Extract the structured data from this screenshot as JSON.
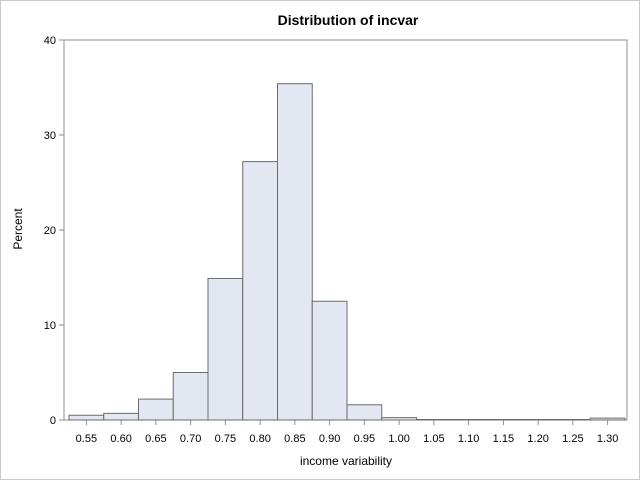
{
  "chart_data": {
    "type": "bar",
    "title": "Distribution of incvar",
    "xlabel": "income variability",
    "ylabel": "Percent",
    "x_ticks": [
      "0.55",
      "0.60",
      "0.65",
      "0.70",
      "0.75",
      "0.80",
      "0.85",
      "0.90",
      "0.95",
      "1.00",
      "1.05",
      "1.10",
      "1.15",
      "1.20",
      "1.25",
      "1.30"
    ],
    "y_ticks": [
      "0",
      "10",
      "20",
      "30",
      "40"
    ],
    "bin_width": 0.05,
    "bins": [
      {
        "center": 0.55,
        "value": 0.5
      },
      {
        "center": 0.6,
        "value": 0.7
      },
      {
        "center": 0.65,
        "value": 2.2
      },
      {
        "center": 0.7,
        "value": 5.0
      },
      {
        "center": 0.75,
        "value": 14.9
      },
      {
        "center": 0.8,
        "value": 27.2
      },
      {
        "center": 0.85,
        "value": 35.4
      },
      {
        "center": 0.9,
        "value": 12.5
      },
      {
        "center": 0.95,
        "value": 1.6
      },
      {
        "center": 1.0,
        "value": 0.25
      },
      {
        "center": 1.05,
        "value": 0.05
      },
      {
        "center": 1.1,
        "value": 0.05
      },
      {
        "center": 1.15,
        "value": 0.05
      },
      {
        "center": 1.2,
        "value": 0.05
      },
      {
        "center": 1.25,
        "value": 0.05
      },
      {
        "center": 1.3,
        "value": 0.2
      }
    ],
    "xlim": [
      0.525,
      1.325
    ],
    "ylim": [
      0,
      40
    ],
    "grid": false,
    "legend": "none",
    "colors": {
      "bar_fill": "#e2e7f1",
      "bar_stroke": "#6b6b6b",
      "axis": "#8c8c8c",
      "frame": "#c8c8c8"
    }
  }
}
